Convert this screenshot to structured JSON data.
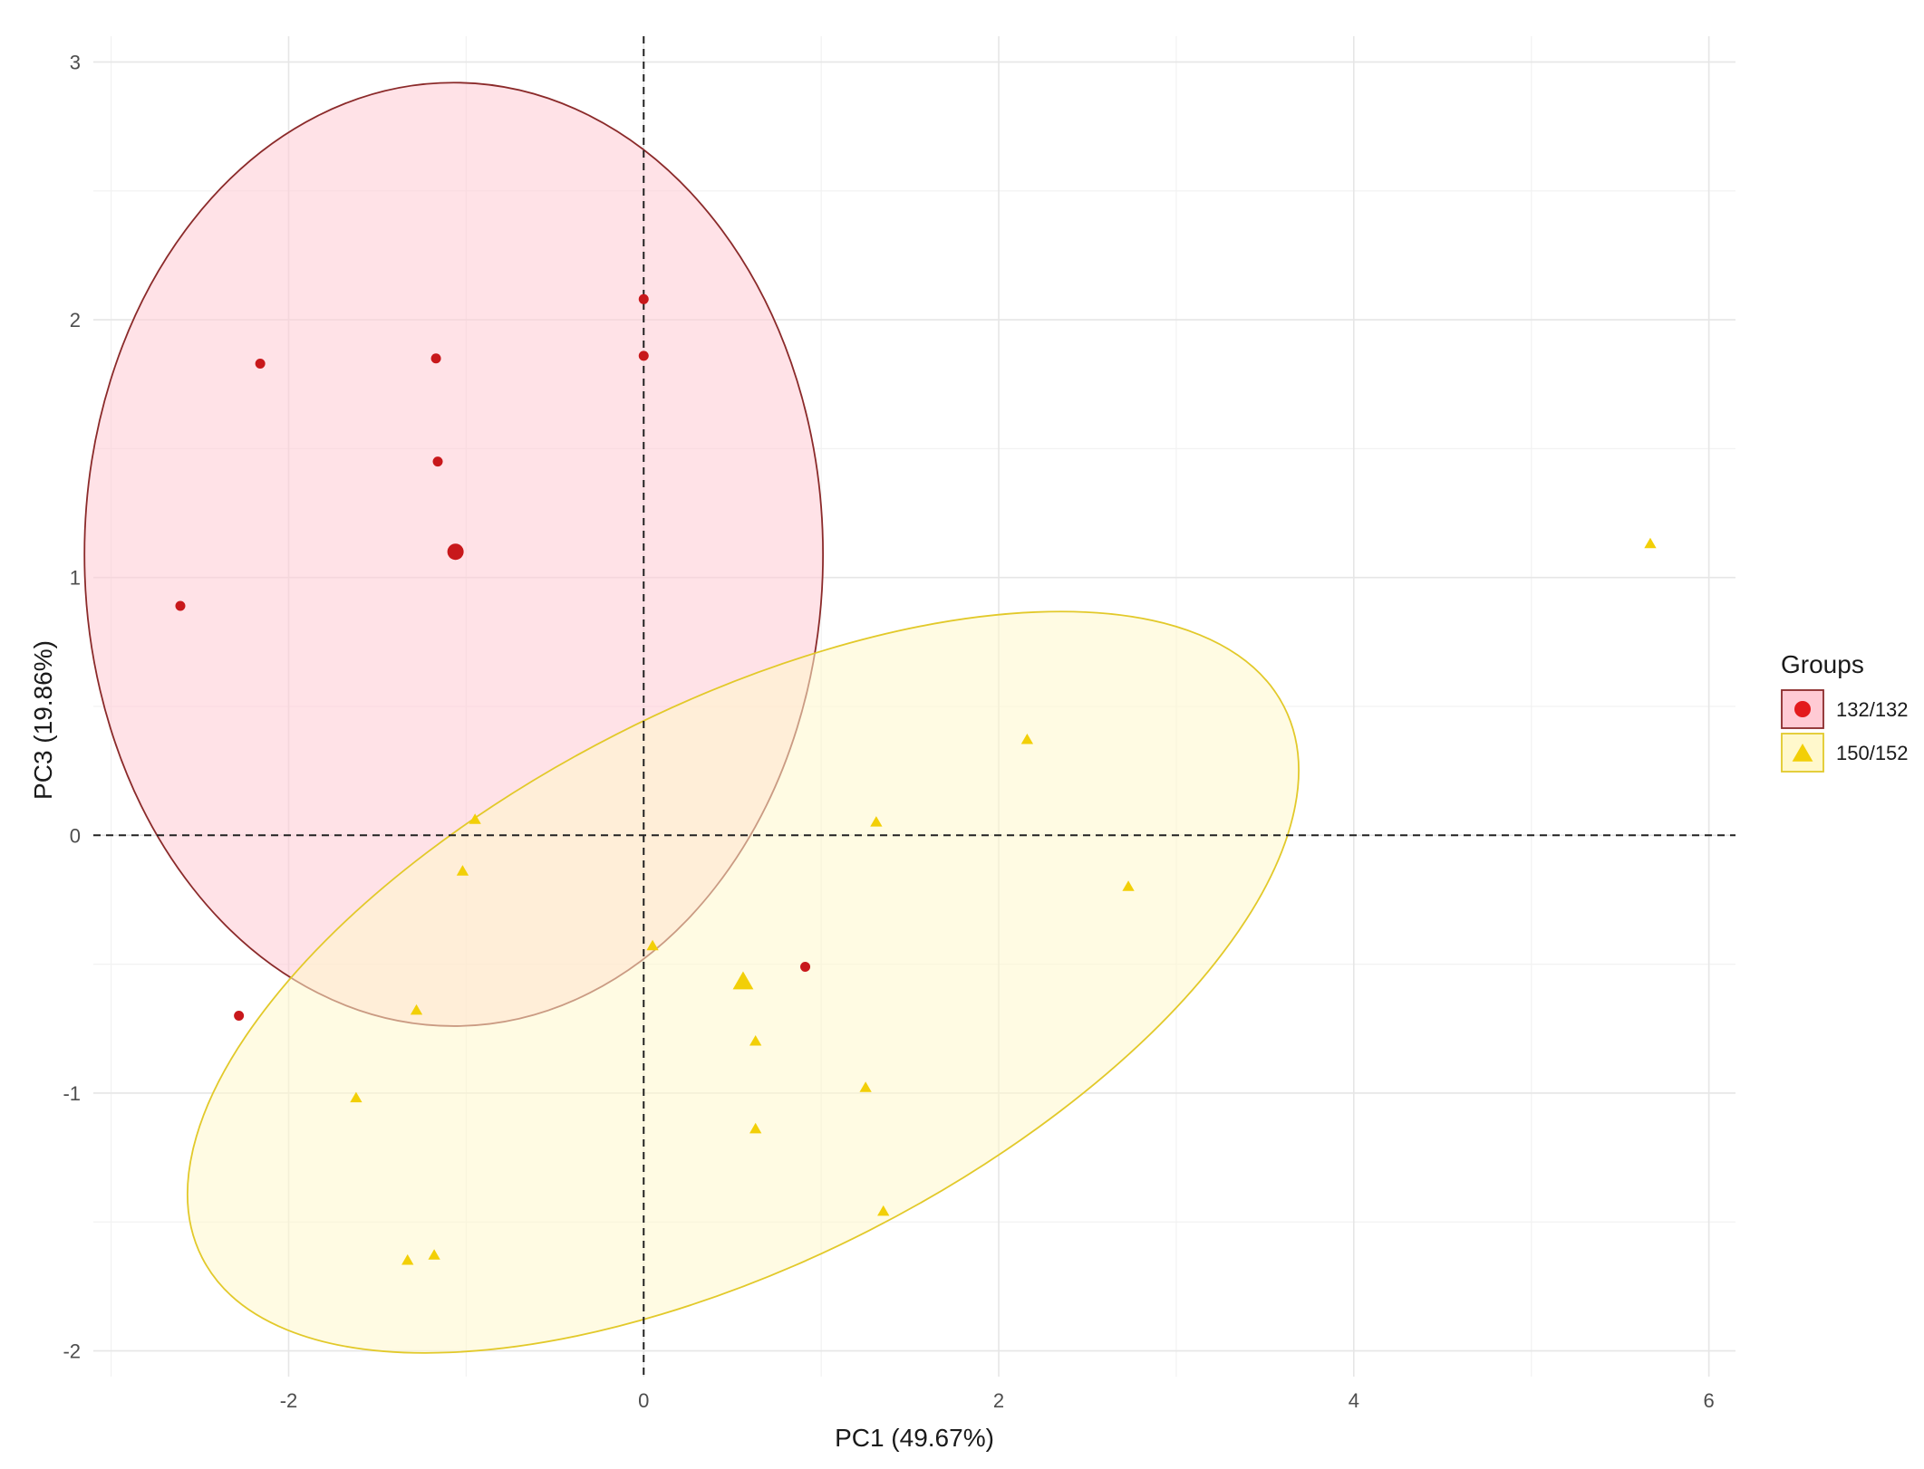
{
  "chart_data": {
    "type": "scatter",
    "xlabel": "PC1 (49.67%)",
    "ylabel": "PC3 (19.86%)",
    "xlim": [
      -3.1,
      6.15
    ],
    "ylim": [
      -2.1,
      3.1
    ],
    "x_ticks": [
      -2,
      0,
      2,
      4,
      6
    ],
    "y_ticks": [
      -2,
      -1,
      0,
      1,
      2,
      3
    ],
    "grid": true,
    "reference_lines": {
      "x": 0,
      "y": 0,
      "style": "dashed"
    },
    "legend": {
      "title": "Groups",
      "position": "right",
      "entries": [
        {
          "label": "132/132",
          "shape": "circle",
          "color": "#e31a1c"
        },
        {
          "label": "150/152",
          "shape": "triangle",
          "color": "#f2cf07"
        }
      ]
    },
    "series": [
      {
        "name": "132/132",
        "shape": "circle",
        "color": "#c8181b",
        "fill": "#ffcad4",
        "stroke": "#8b2a2a",
        "ellipse": {
          "cx": -1.07,
          "cy": 1.09,
          "rx": 2.08,
          "ry": 1.83,
          "angle_deg": 0
        },
        "centroid": {
          "x": -1.06,
          "y": 1.1
        },
        "points": [
          {
            "x": -2.16,
            "y": 1.83
          },
          {
            "x": -1.17,
            "y": 1.85
          },
          {
            "x": -1.16,
            "y": 1.45
          },
          {
            "x": 0.0,
            "y": 2.08
          },
          {
            "x": 0.0,
            "y": 1.86
          },
          {
            "x": -2.61,
            "y": 0.89
          },
          {
            "x": -2.28,
            "y": -0.7
          },
          {
            "x": 0.91,
            "y": -0.51
          }
        ]
      },
      {
        "name": "150/152",
        "shape": "triangle",
        "color": "#f2cf07",
        "fill": "#fff8cc",
        "stroke": "#e2c92a",
        "ellipse": {
          "cx": 0.56,
          "cy": -0.57,
          "rx": 3.42,
          "ry": 1.08,
          "angle_deg": 27
        },
        "centroid": {
          "x": 0.56,
          "y": -0.57
        },
        "points": [
          {
            "x": -0.95,
            "y": 0.06
          },
          {
            "x": -1.02,
            "y": -0.14
          },
          {
            "x": 0.05,
            "y": -0.43
          },
          {
            "x": 1.31,
            "y": 0.05
          },
          {
            "x": 2.16,
            "y": 0.37
          },
          {
            "x": 2.73,
            "y": -0.2
          },
          {
            "x": 0.63,
            "y": -0.8
          },
          {
            "x": 1.25,
            "y": -0.98
          },
          {
            "x": 0.63,
            "y": -1.14
          },
          {
            "x": 1.35,
            "y": -1.46
          },
          {
            "x": -1.28,
            "y": -0.68
          },
          {
            "x": -1.62,
            "y": -1.02
          },
          {
            "x": -1.33,
            "y": -1.65
          },
          {
            "x": -1.18,
            "y": -1.63
          },
          {
            "x": 5.67,
            "y": 1.13
          }
        ]
      }
    ]
  }
}
